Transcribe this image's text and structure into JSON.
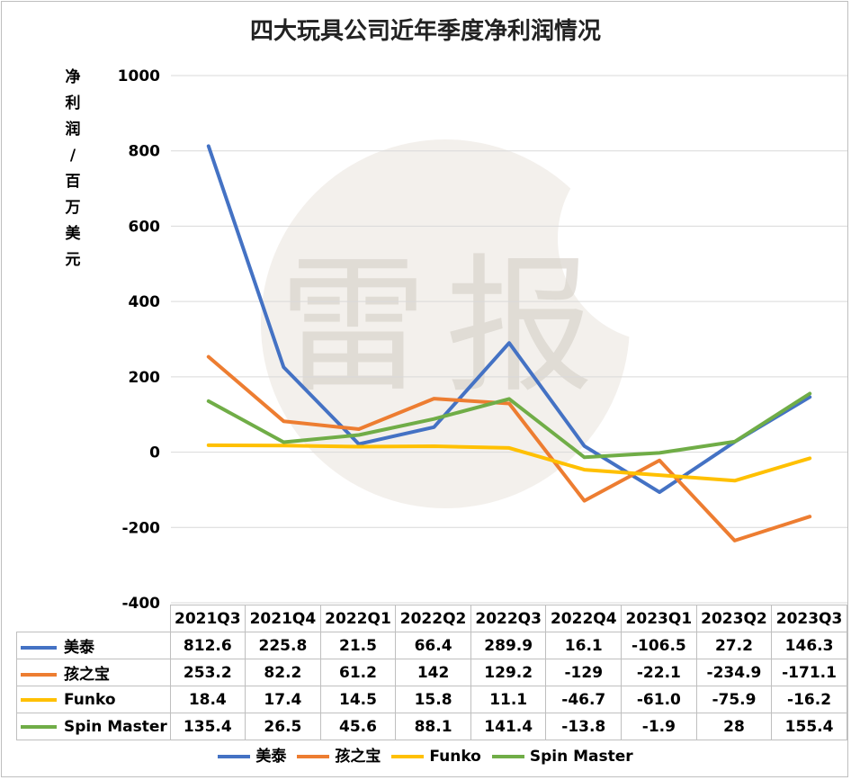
{
  "colors": {
    "美泰": "#4472c4",
    "孩之宝": "#ed7d31",
    "Funko": "#ffc000",
    "Spin Master": "#70ad47",
    "gridline": "#d9d9d9",
    "watermark": "#e9e4dc"
  },
  "watermark_text": "雷报",
  "chart_data": {
    "type": "line",
    "title": "四大玩具公司近年季度净利润情况",
    "ylabel": "净利润/百万美元",
    "xlabel": "",
    "categories": [
      "2021Q3",
      "2021Q4",
      "2022Q1",
      "2022Q2",
      "2022Q3",
      "2022Q4",
      "2023Q1",
      "2023Q2",
      "2023Q3"
    ],
    "ylim": [
      -400,
      1000
    ],
    "yticks": [
      1000,
      800,
      600,
      400,
      200,
      0,
      -200,
      -400
    ],
    "grid": true,
    "legend": "bottom",
    "data_table": true,
    "series": [
      {
        "name": "美泰",
        "values": [
          812.6,
          225.8,
          21.5,
          66.4,
          289.9,
          16.1,
          -106.5,
          27.2,
          146.3
        ],
        "labels": [
          "812.6",
          "225.8",
          "21.5",
          "66.4",
          "289.9",
          "16.1",
          "-106.5",
          "27.2",
          "146.3"
        ]
      },
      {
        "name": "孩之宝",
        "values": [
          253.2,
          82.2,
          61.2,
          142,
          129.2,
          -129,
          -22.1,
          -234.9,
          -171.1
        ],
        "labels": [
          "253.2",
          "82.2",
          "61.2",
          "142",
          "129.2",
          "-129",
          "-22.1",
          "-234.9",
          "-171.1"
        ]
      },
      {
        "name": "Funko",
        "values": [
          18.4,
          17.4,
          14.5,
          15.8,
          11.1,
          -46.7,
          -61.0,
          -75.9,
          -16.2
        ],
        "labels": [
          "18.4",
          "17.4",
          "14.5",
          "15.8",
          "11.1",
          "-46.7",
          "-61.0",
          "-75.9",
          "-16.2"
        ]
      },
      {
        "name": "Spin Master",
        "values": [
          135.4,
          26.5,
          45.6,
          88.1,
          141.4,
          -13.8,
          -1.9,
          28,
          155.4
        ],
        "labels": [
          "135.4",
          "26.5",
          "45.6",
          "88.1",
          "141.4",
          "-13.8",
          "-1.9",
          "28",
          "155.4"
        ]
      }
    ]
  }
}
